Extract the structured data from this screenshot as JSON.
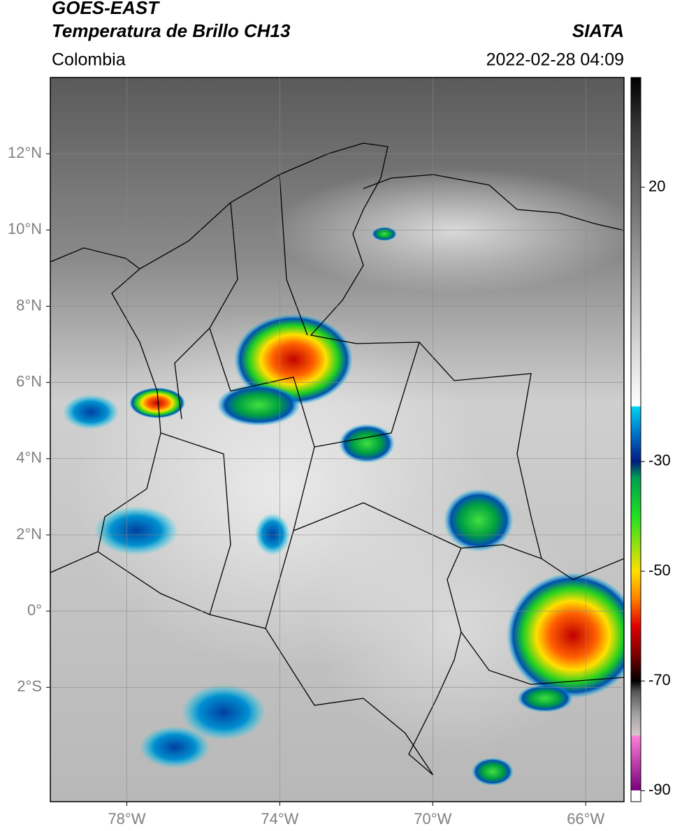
{
  "header": {
    "title": "GOES-EAST",
    "subtitle": "Temperatura de Brillo CH13",
    "source": "SIATA",
    "region": "Colombia",
    "datetime": "2022-02-28 04:09"
  },
  "map": {
    "xlim": [
      -80,
      -65
    ],
    "ylim": [
      -5,
      14
    ],
    "xticks": [
      {
        "value": -78,
        "label": "78°W"
      },
      {
        "value": -74,
        "label": "74°W"
      },
      {
        "value": -70,
        "label": "70°W"
      },
      {
        "value": -66,
        "label": "66°W"
      }
    ],
    "yticks": [
      {
        "value": 12,
        "label": "12°N"
      },
      {
        "value": 10,
        "label": "10°N"
      },
      {
        "value": 8,
        "label": "8°N"
      },
      {
        "value": 6,
        "label": "6°N"
      },
      {
        "value": 4,
        "label": "4°N"
      },
      {
        "value": 2,
        "label": "2°N"
      },
      {
        "value": 0,
        "label": "0°"
      },
      {
        "value": -2,
        "label": "2°S"
      }
    ],
    "grid": true
  },
  "colorbar": {
    "lim": [
      -92,
      40
    ],
    "ticks": [
      20,
      -30,
      -50,
      -70,
      -90
    ],
    "colormap": [
      [
        40,
        "#000000"
      ],
      [
        30,
        "#3c3c3c"
      ],
      [
        0,
        "#b4b4b4"
      ],
      [
        -19.9,
        "#ffffff"
      ],
      [
        -20,
        "#00d4f0"
      ],
      [
        -25,
        "#0070c8"
      ],
      [
        -30,
        "#001c80"
      ],
      [
        -33,
        "#00a050"
      ],
      [
        -40,
        "#20e020"
      ],
      [
        -50,
        "#ffe000"
      ],
      [
        -55,
        "#ff8000"
      ],
      [
        -60,
        "#e00000"
      ],
      [
        -65,
        "#800000"
      ],
      [
        -70,
        "#000000"
      ],
      [
        -72,
        "#585858"
      ],
      [
        -76,
        "#a0a0a0"
      ],
      [
        -79.9,
        "#d8c8c8"
      ],
      [
        -80,
        "#ff80d8"
      ],
      [
        -89.9,
        "#7a0080"
      ],
      [
        -90,
        "#ffffff"
      ],
      [
        -92,
        "#ffffff"
      ]
    ]
  }
}
